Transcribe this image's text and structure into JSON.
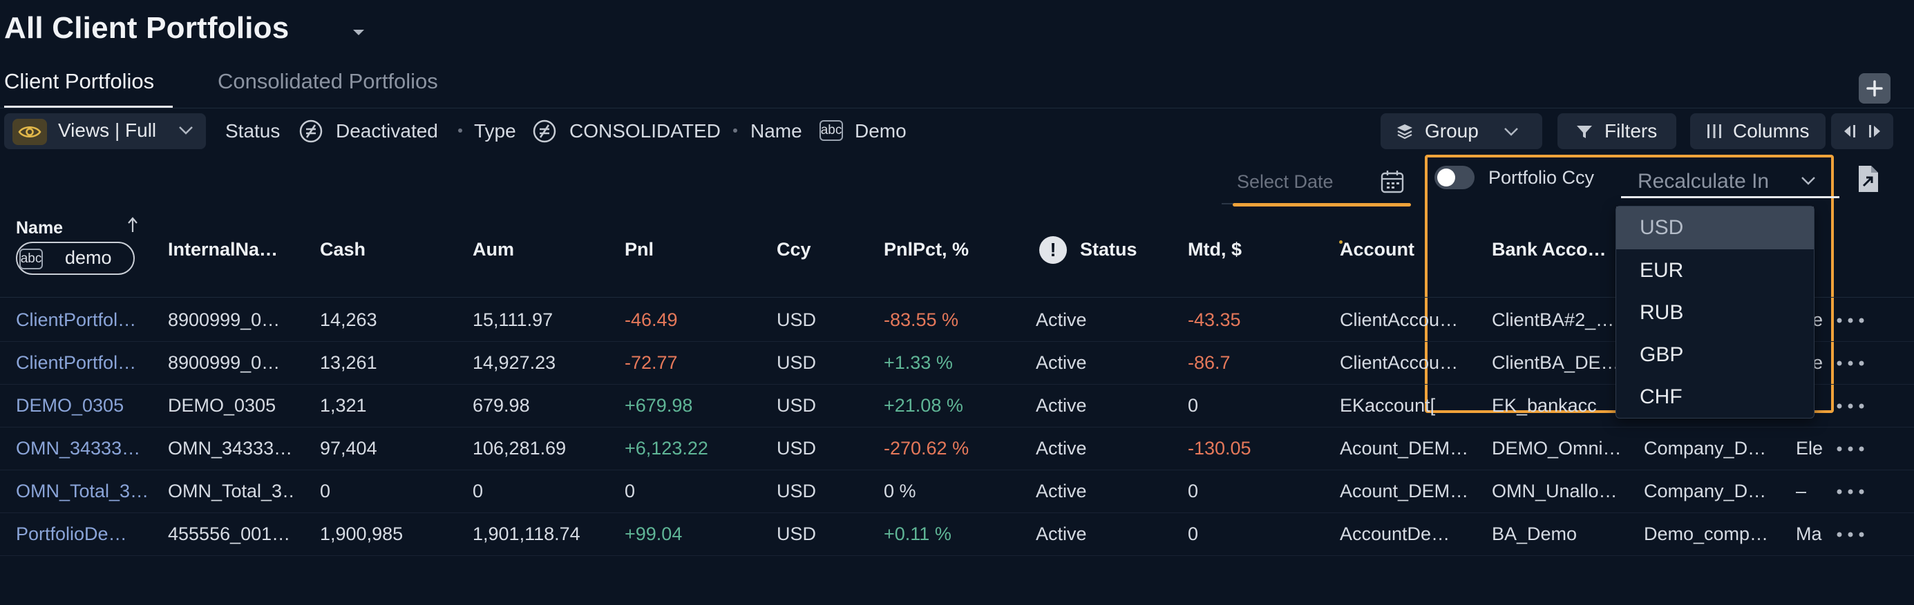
{
  "page": {
    "title": "All Client Portfolios"
  },
  "tabs": [
    {
      "label": "Client Portfolios",
      "active": true
    },
    {
      "label": "Consolidated Portfolios",
      "active": false
    }
  ],
  "toolbar": {
    "views_label": "Views | Full",
    "filters": {
      "status_key": "Status",
      "status_value": "Deactivated",
      "type_key": "Type",
      "type_value": "CONSOLIDATED",
      "name_key": "Name",
      "name_badge": "abc",
      "name_value": "Demo"
    },
    "group_label": "Group",
    "filters_label": "Filters",
    "columns_label": "Columns",
    "date_placeholder": "Select Date",
    "portfolio_ccy_label": "Portfolio Ccy",
    "portfolio_ccy_enabled": false,
    "recalculate_placeholder": "Recalculate In"
  },
  "currency_dropdown": {
    "options": [
      "USD",
      "EUR",
      "RUB",
      "GBP",
      "CHF"
    ],
    "highlighted": "USD"
  },
  "table": {
    "headers": {
      "name": "Name",
      "internal_name": "InternalNa…",
      "cash": "Cash",
      "aum": "Aum",
      "pnl": "Pnl",
      "ccy": "Ccy",
      "pnl_pct": "PnlPct, %",
      "status": "Status",
      "mtd": "Mtd, $",
      "account": "Account",
      "bank_account": "Bank Acco…"
    },
    "name_filter": {
      "badge": "abc",
      "value": "demo"
    },
    "rows": [
      {
        "name": "ClientPortfol…",
        "internal_name": "8900999_0…",
        "cash": "14,263",
        "aum": "15,111.97",
        "pnl": "-46.49",
        "ccy": "USD",
        "pnl_pct": "-83.55 %",
        "status": "Active",
        "mtd": "-43.35",
        "account": "ClientAccou…",
        "bank": "ClientBA#2_…",
        "company": "",
        "extra": "Ele"
      },
      {
        "name": "ClientPortfol…",
        "internal_name": "8900999_0…",
        "cash": "13,261",
        "aum": "14,927.23",
        "pnl": "-72.77",
        "ccy": "USD",
        "pnl_pct": "+1.33 %",
        "status": "Active",
        "mtd": "-86.7",
        "account": "ClientAccou…",
        "bank": "ClientBA_DE…",
        "company": "",
        "extra": "Ele"
      },
      {
        "name": "DEMO_0305",
        "internal_name": "DEMO_0305",
        "cash": "1,321",
        "aum": "679.98",
        "pnl": "+679.98",
        "ccy": "USD",
        "pnl_pct": "+21.08 %",
        "status": "Active",
        "mtd": "0",
        "account": "EKaccount[",
        "bank": "EK_bankacc",
        "company": "",
        "extra": ""
      },
      {
        "name": "OMN_34333…",
        "internal_name": "OMN_34333…",
        "cash": "97,404",
        "aum": "106,281.69",
        "pnl": "+6,123.22",
        "ccy": "USD",
        "pnl_pct": "-270.62 %",
        "status": "Active",
        "mtd": "-130.05",
        "account": "Acount_DEM…",
        "bank": "DEMO_Omni…",
        "company": "Company_D…",
        "extra": "Ele"
      },
      {
        "name": "OMN_Total_3…",
        "internal_name": "OMN_Total_3…",
        "cash": "0",
        "aum": "0",
        "pnl": "0",
        "ccy": "USD",
        "pnl_pct": "0 %",
        "status": "Active",
        "mtd": "0",
        "account": "Acount_DEM…",
        "bank": "OMN_Unallo…",
        "company": "Company_D…",
        "extra": "–"
      },
      {
        "name": "PortfolioDe…",
        "internal_name": "455556_001…",
        "cash": "1,900,985",
        "aum": "1,901,118.74",
        "pnl": "+99.04",
        "ccy": "USD",
        "pnl_pct": "+0.11 %",
        "status": "Active",
        "mtd": "0",
        "account": "AccountDe…",
        "bank": "BA_Demo",
        "company": "Demo_comp…",
        "extra": "Ma"
      }
    ]
  },
  "colors": {
    "background": "#0b1422",
    "accent_orange": "#f0a23a",
    "negative": "#e5785a",
    "positive": "#5fb596",
    "link": "#8aa4d8"
  }
}
